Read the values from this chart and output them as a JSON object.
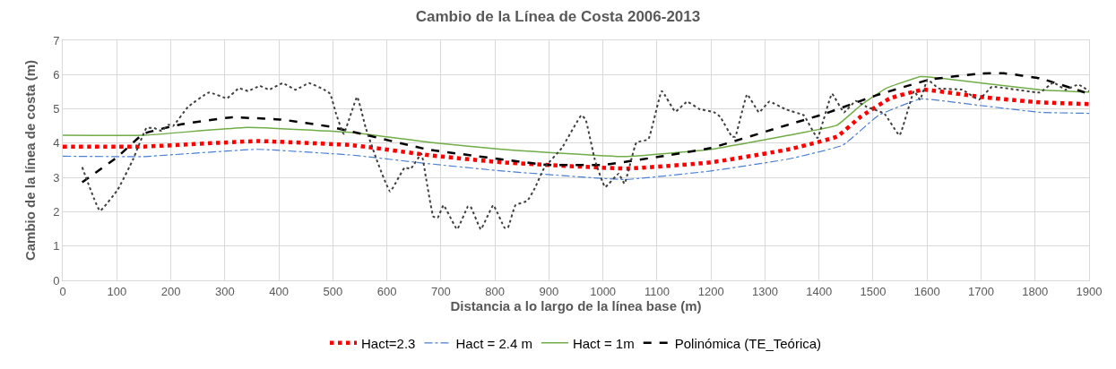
{
  "chart_data": {
    "type": "line",
    "title": "Cambio de la Línea de Costa 2006-2013",
    "xlabel": "Distancia a lo largo de la línea base (m)",
    "ylabel": "Cambio de la línea de costa (m)",
    "xlim": [
      0,
      1900
    ],
    "xticks": [
      0,
      100,
      200,
      300,
      400,
      500,
      600,
      700,
      800,
      900,
      1000,
      1100,
      1200,
      1300,
      1400,
      1500,
      1600,
      1700,
      1800,
      1900
    ],
    "ylim": [
      0,
      7
    ],
    "yticks": [
      0,
      1,
      2,
      3,
      4,
      5,
      6,
      7
    ],
    "grid": true,
    "legend": "bottom",
    "marker": "none",
    "series": [
      {
        "name": "Hact=2.3",
        "color": "#ff0000",
        "line_style": "dotted",
        "x": [
          0,
          149,
          360,
          537,
          678,
          813,
          1045,
          1200,
          1344,
          1433,
          1477,
          1532,
          1593,
          1698,
          1809,
          1900
        ],
        "values": [
          3.9,
          3.9,
          4.06,
          3.94,
          3.65,
          3.44,
          3.26,
          3.44,
          3.82,
          4.19,
          4.77,
          5.31,
          5.56,
          5.35,
          5.19,
          5.14
        ]
      },
      {
        "name": "Hact = 2.4 m",
        "color": "#4a7fd4",
        "line_style": "dashdot",
        "x": [
          0,
          149,
          360,
          537,
          678,
          813,
          1040,
          1200,
          1344,
          1444,
          1510,
          1588,
          1698,
          1809,
          1900
        ],
        "values": [
          3.62,
          3.61,
          3.82,
          3.65,
          3.4,
          3.19,
          2.94,
          3.19,
          3.54,
          3.94,
          4.81,
          5.29,
          5.1,
          4.9,
          4.87
        ]
      },
      {
        "name": "Hact = 1m",
        "color": "#70ad47",
        "line_style": "solid",
        "x": [
          0,
          149,
          343,
          537,
          680,
          813,
          1040,
          1200,
          1344,
          1433,
          1477,
          1524,
          1588,
          1621,
          1809,
          1900
        ],
        "values": [
          4.23,
          4.23,
          4.46,
          4.31,
          4.02,
          3.82,
          3.61,
          3.82,
          4.23,
          4.52,
          5.1,
          5.6,
          5.94,
          5.9,
          5.56,
          5.49
        ]
      },
      {
        "name": "Polinómica (TE_Teórica)",
        "color": "#000000",
        "line_style": "dashed",
        "x": [
          36,
          102,
          149,
          216,
          310,
          404,
          495,
          564,
          675,
          896,
          1001,
          1106,
          1200,
          1339,
          1411,
          1505,
          1604,
          1698,
          1742,
          1809,
          1892
        ],
        "values": [
          2.86,
          3.61,
          4.27,
          4.54,
          4.75,
          4.69,
          4.48,
          4.23,
          3.82,
          3.37,
          3.37,
          3.61,
          3.86,
          4.52,
          4.86,
          5.39,
          5.85,
          6.03,
          6.04,
          5.89,
          5.48
        ]
      },
      {
        "color": "#404040",
        "line_style": "dotted",
        "x": [
          36,
          69,
          102,
          130,
          155,
          169,
          183,
          196,
          204,
          232,
          271,
          304,
          326,
          343,
          365,
          382,
          407,
          431,
          456,
          484,
          495,
          506,
          520,
          545,
          561,
          581,
          606,
          633,
          644,
          664,
          672,
          686,
          694,
          705,
          730,
          750,
          755,
          774,
          797,
          818,
          824,
          838,
          860,
          874,
          891,
          924,
          960,
          968,
          985,
          1004,
          1029,
          1040,
          1062,
          1084,
          1109,
          1134,
          1156,
          1178,
          1206,
          1217,
          1239,
          1245,
          1267,
          1289,
          1308,
          1339,
          1372,
          1397,
          1424,
          1446,
          1468,
          1488,
          1521,
          1549,
          1576,
          1587,
          1601,
          1621,
          1665,
          1696,
          1720,
          1809,
          1834,
          1856,
          1880,
          1900
        ],
        "values": [
          3.3,
          2.03,
          2.65,
          3.52,
          4.44,
          4.44,
          4.36,
          4.54,
          4.5,
          5.06,
          5.48,
          5.31,
          5.6,
          5.52,
          5.67,
          5.56,
          5.75,
          5.56,
          5.75,
          5.56,
          5.44,
          4.86,
          4.27,
          5.35,
          4.44,
          3.52,
          2.59,
          3.29,
          3.25,
          3.69,
          3.03,
          1.86,
          1.82,
          2.19,
          1.49,
          2.15,
          2.15,
          1.49,
          2.19,
          1.53,
          1.53,
          2.19,
          2.32,
          2.69,
          3.27,
          3.86,
          4.81,
          4.69,
          3.52,
          2.72,
          3.11,
          2.82,
          4.02,
          4.11,
          5.52,
          4.92,
          5.21,
          5.0,
          4.9,
          4.77,
          4.19,
          4.19,
          5.42,
          4.9,
          5.21,
          4.98,
          4.81,
          4.15,
          5.44,
          4.9,
          5.23,
          5.06,
          4.86,
          4.23,
          5.52,
          5.27,
          5.85,
          5.6,
          5.56,
          5.27,
          5.64,
          5.48,
          5.77,
          5.56,
          5.71,
          5.52
        ]
      }
    ]
  }
}
